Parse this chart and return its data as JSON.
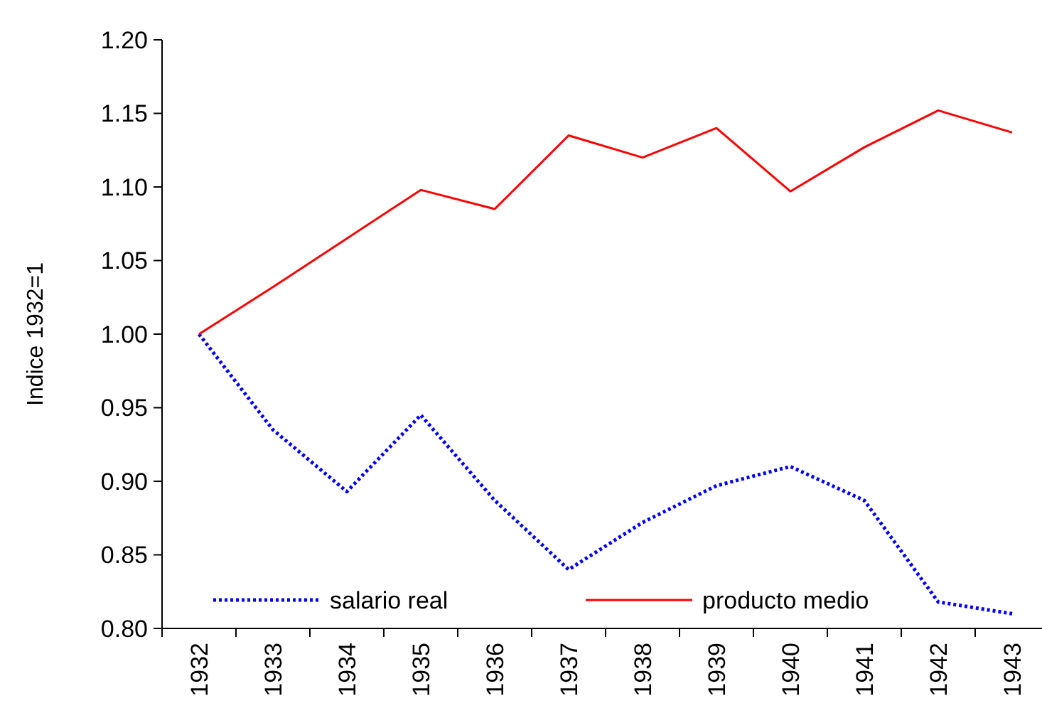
{
  "chart_data": {
    "type": "line",
    "ylabel": "Indice 1932=1",
    "categories": [
      "1932",
      "1933",
      "1934",
      "1935",
      "1936",
      "1937",
      "1938",
      "1939",
      "1940",
      "1941",
      "1942",
      "1943"
    ],
    "series": [
      {
        "name": "salario real",
        "color": "#0000ff",
        "line_style": "dotted",
        "values": [
          1.0,
          0.935,
          0.893,
          0.945,
          0.887,
          0.84,
          0.872,
          0.897,
          0.91,
          0.887,
          0.818,
          0.81
        ]
      },
      {
        "name": "producto medio",
        "color": "#ff0000",
        "line_style": "solid",
        "values": [
          1.0,
          1.032,
          1.065,
          1.098,
          1.085,
          1.135,
          1.12,
          1.14,
          1.097,
          1.127,
          1.152,
          1.137
        ]
      }
    ],
    "ylim": [
      0.8,
      1.2
    ],
    "yticks": [
      {
        "value": 0.8,
        "label": "0.80"
      },
      {
        "value": 0.85,
        "label": "0.85"
      },
      {
        "value": 0.9,
        "label": "0.90"
      },
      {
        "value": 0.95,
        "label": "0.95"
      },
      {
        "value": 1.0,
        "label": "1.00"
      },
      {
        "value": 1.05,
        "label": "1.05"
      },
      {
        "value": 1.1,
        "label": "1.10"
      },
      {
        "value": 1.15,
        "label": "1.15"
      },
      {
        "value": 1.2,
        "label": "1.20"
      }
    ],
    "grid": false,
    "legend": "bottom",
    "marker": "none"
  }
}
